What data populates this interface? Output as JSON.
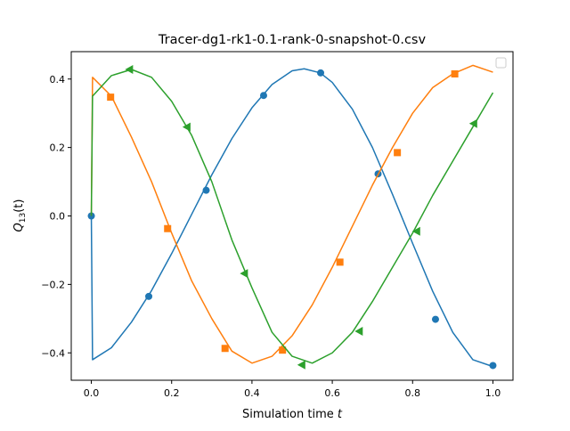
{
  "chart_data": {
    "type": "line",
    "title": "Tracer-dg1-rk1-0.1-rank-0-snapshot-0.csv",
    "xlabel_text": "Simulation time",
    "xlabel_var": "t",
    "ylabel_base": "Q",
    "ylabel_sub": "13",
    "ylabel_arg": "(t)",
    "xlim": [
      -0.05,
      1.05
    ],
    "ylim": [
      -0.48,
      0.48
    ],
    "xticks": [
      0.0,
      0.2,
      0.4,
      0.6,
      0.8,
      1.0
    ],
    "xtick_labels": [
      "0.0",
      "0.2",
      "0.4",
      "0.6",
      "0.8",
      "1.0"
    ],
    "yticks": [
      -0.4,
      -0.2,
      0.0,
      0.2,
      0.4
    ],
    "ytick_labels": [
      "−0.4",
      "−0.2",
      "0.0",
      "0.2",
      "0.4"
    ],
    "grid": false,
    "legend": "top-right (empty)",
    "series": [
      {
        "color": "#1f77b4",
        "marker": "circle",
        "x": [
          0.0,
          0.003,
          0.05,
          0.1,
          0.15,
          0.2,
          0.25,
          0.3,
          0.35,
          0.4,
          0.45,
          0.5,
          0.53,
          0.57,
          0.6,
          0.65,
          0.7,
          0.75,
          0.8,
          0.85,
          0.9,
          0.95,
          1.0
        ],
        "y": [
          0.0,
          -0.42,
          -0.385,
          -0.31,
          -0.218,
          -0.11,
          0.005,
          0.12,
          0.226,
          0.316,
          0.384,
          0.424,
          0.43,
          0.418,
          0.39,
          0.312,
          0.2,
          0.063,
          -0.08,
          -0.22,
          -0.34,
          -0.42,
          -0.44
        ],
        "marker_x": [
          0.0,
          0.143,
          0.286,
          0.429,
          0.571,
          0.714,
          0.857,
          1.0
        ],
        "marker_y": [
          0.0,
          -0.235,
          0.075,
          0.352,
          0.418,
          0.123,
          -0.302,
          -0.437
        ]
      },
      {
        "color": "#ff7f0e",
        "marker": "square",
        "x": [
          0.0,
          0.003,
          0.05,
          0.1,
          0.15,
          0.2,
          0.25,
          0.3,
          0.35,
          0.4,
          0.45,
          0.5,
          0.55,
          0.6,
          0.65,
          0.7,
          0.75,
          0.8,
          0.85,
          0.9,
          0.95,
          1.0
        ],
        "y": [
          0.0,
          0.405,
          0.35,
          0.23,
          0.1,
          -0.05,
          -0.19,
          -0.3,
          -0.395,
          -0.43,
          -0.41,
          -0.35,
          -0.26,
          -0.15,
          -0.03,
          0.09,
          0.2,
          0.3,
          0.375,
          0.415,
          0.44,
          0.42
        ],
        "marker_x": [
          0.048,
          0.19,
          0.333,
          0.476,
          0.619,
          0.762,
          0.905
        ],
        "marker_y": [
          0.347,
          -0.037,
          -0.387,
          -0.392,
          -0.135,
          0.185,
          0.415
        ]
      },
      {
        "color": "#2ca02c",
        "marker": "triangle-left",
        "x": [
          0.0,
          0.003,
          0.05,
          0.1,
          0.15,
          0.2,
          0.25,
          0.3,
          0.35,
          0.4,
          0.45,
          0.5,
          0.55,
          0.6,
          0.65,
          0.7,
          0.75,
          0.8,
          0.85,
          0.9,
          0.95,
          1.0
        ],
        "y": [
          0.0,
          0.35,
          0.41,
          0.428,
          0.405,
          0.335,
          0.235,
          0.1,
          -0.07,
          -0.21,
          -0.34,
          -0.41,
          -0.43,
          -0.4,
          -0.34,
          -0.25,
          -0.15,
          -0.05,
          0.06,
          0.16,
          0.26,
          0.36
        ],
        "marker_x": [
          0.095,
          0.238,
          0.381,
          0.524,
          0.667,
          0.81,
          0.952
        ],
        "marker_y": [
          0.428,
          0.26,
          -0.168,
          -0.435,
          -0.337,
          -0.045,
          0.27
        ]
      }
    ]
  }
}
